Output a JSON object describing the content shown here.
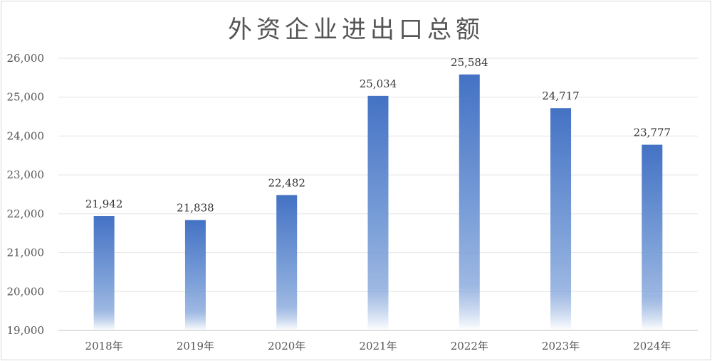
{
  "chart_data": {
    "type": "bar",
    "title": "外资企业进出口总额",
    "categories": [
      "2018年",
      "2019年",
      "2020年",
      "2021年",
      "2022年",
      "2023年",
      "2024年"
    ],
    "values": [
      21942,
      21838,
      22482,
      25034,
      25584,
      24717,
      23777
    ],
    "value_labels": [
      "21,942",
      "21,838",
      "22,482",
      "25,034",
      "25,584",
      "24,717",
      "23,777"
    ],
    "ylim": [
      19000,
      26000
    ],
    "yticks": [
      19000,
      20000,
      21000,
      22000,
      23000,
      24000,
      25000,
      26000
    ],
    "ytick_labels": [
      "19,000",
      "20,000",
      "21,000",
      "22,000",
      "23,000",
      "24,000",
      "25,000",
      "26,000"
    ],
    "grid": true,
    "xlabel": "",
    "ylabel": "",
    "colors": {
      "bar_top": "#4472c4",
      "bar_mid": "#7b9fd8",
      "bar_bottom": "#ffffff",
      "grid": "#e3e3e3",
      "axis": "#bfbfbf"
    }
  }
}
